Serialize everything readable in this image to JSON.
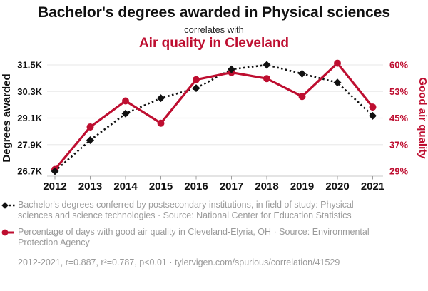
{
  "header": {
    "title": "Bachelor's degrees awarded in Physical sciences",
    "subtitle": "correlates with",
    "title2": "Air quality in Cleveland"
  },
  "colors": {
    "red": "#be0e30",
    "black": "#111111",
    "grid": "#ececec",
    "axis": "#c9c9c9",
    "gray": "#9a9a9a"
  },
  "chart_data": {
    "type": "line",
    "x": [
      2012,
      2013,
      2014,
      2015,
      2016,
      2017,
      2018,
      2019,
      2020,
      2021
    ],
    "x_ticks": [
      "2012",
      "2013",
      "2014",
      "2015",
      "2016",
      "2017",
      "2018",
      "2019",
      "2020",
      "2021"
    ],
    "grid": "horizontal",
    "legend_position": "bottom",
    "series": [
      {
        "name": "Bachelor's degrees awarded in Physical sciences",
        "axis": "left",
        "style": "dotted-line-diamond-markers",
        "color": "#111111",
        "values": [
          26700,
          28100,
          29300,
          30000,
          30450,
          31300,
          31500,
          31100,
          30700,
          29200
        ]
      },
      {
        "name": "Air quality in Cleveland",
        "axis": "right",
        "style": "solid-line-circle-markers",
        "color": "#be0e30",
        "values": [
          29.5,
          41.9,
          49.5,
          43.0,
          55.7,
          57.8,
          56.0,
          50.8,
          60.5,
          47.7
        ]
      }
    ],
    "left_axis": {
      "label": "Degrees awarded",
      "ticks": [
        "31.5K",
        "30.3K",
        "29.1K",
        "27.9K",
        "26.7K"
      ],
      "tick_values": [
        31500,
        30300,
        29100,
        27900,
        26700
      ],
      "range": [
        26700,
        31500
      ]
    },
    "right_axis": {
      "label": "Good air quality",
      "ticks": [
        "60%",
        "53%",
        "45%",
        "37%",
        "29%"
      ],
      "tick_values": [
        60,
        53,
        45,
        37,
        29
      ],
      "range": [
        29,
        60
      ]
    }
  },
  "legend": {
    "items": [
      {
        "marker": "black-diamond-dotted-line",
        "text": "Bachelor's degrees conferred by postsecondary institutions, in field of study: Physical sciences and science technologies · Source: National Center for Education Statistics"
      },
      {
        "marker": "red-circle-solid-line",
        "text": "Percentage of days with good air quality in Cleveland-Elyria, OH · Source: Environmental Protection Agency"
      }
    ],
    "footer": "2012-2021, r=0.887, r²=0.787, p<0.01 · tylervigen.com/spurious/correlation/41529"
  }
}
